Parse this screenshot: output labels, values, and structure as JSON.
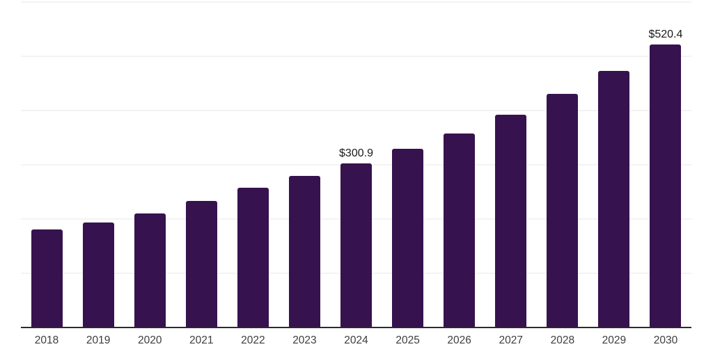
{
  "chart_data": {
    "type": "bar",
    "title": "",
    "xlabel": "",
    "ylabel": "",
    "categories": [
      "2018",
      "2019",
      "2020",
      "2021",
      "2022",
      "2023",
      "2024",
      "2025",
      "2026",
      "2027",
      "2028",
      "2029",
      "2030"
    ],
    "values": [
      180,
      192,
      209,
      232,
      256,
      278,
      300.9,
      328,
      357,
      391,
      430,
      472,
      520.4
    ],
    "data_labels": {
      "2024": "$300.9",
      "2030": "$520.4"
    },
    "ylim": [
      0,
      600
    ],
    "gridline_step": 100,
    "grid": "horizontal-only",
    "legend": "none",
    "colors": {
      "bar": "#36124E",
      "axis": "#2B2B2B",
      "gridline": "#F3F3F3",
      "tick_label": "#3D3D3D",
      "value_label": "#1A1A1A",
      "background": "#FFFFFF"
    }
  }
}
